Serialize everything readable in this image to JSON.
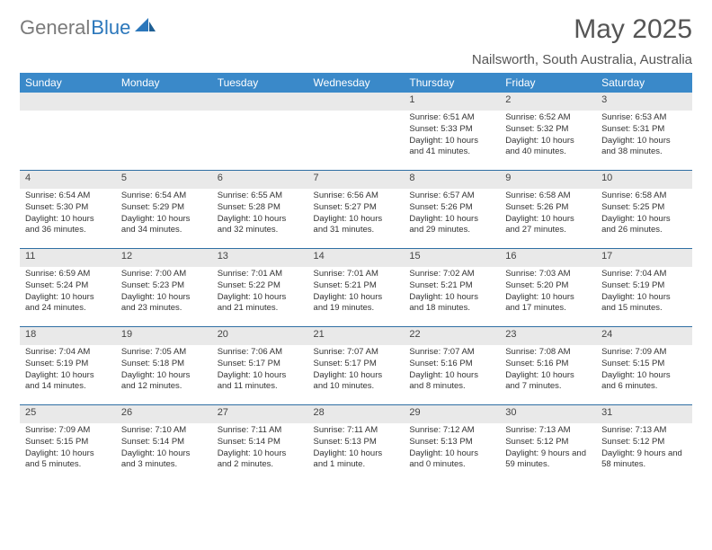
{
  "logo": {
    "part1": "General",
    "part2": "Blue"
  },
  "title": "May 2025",
  "location": "Nailsworth, South Australia, Australia",
  "weekdays": [
    "Sunday",
    "Monday",
    "Tuesday",
    "Wednesday",
    "Thursday",
    "Friday",
    "Saturday"
  ],
  "style": {
    "header_bg": "#3a89c9",
    "header_text": "#ffffff",
    "daynum_bg": "#e9e9e9",
    "sep_color": "#2f6fa3",
    "body_font_size": 9.5,
    "daynum_font_size": 11
  },
  "calendar": {
    "type": "table",
    "cols": 7,
    "rows": 5,
    "first_weekday_index": 4,
    "days": [
      {
        "n": 1,
        "sunrise": "6:51 AM",
        "sunset": "5:33 PM",
        "daylight": "10 hours and 41 minutes."
      },
      {
        "n": 2,
        "sunrise": "6:52 AM",
        "sunset": "5:32 PM",
        "daylight": "10 hours and 40 minutes."
      },
      {
        "n": 3,
        "sunrise": "6:53 AM",
        "sunset": "5:31 PM",
        "daylight": "10 hours and 38 minutes."
      },
      {
        "n": 4,
        "sunrise": "6:54 AM",
        "sunset": "5:30 PM",
        "daylight": "10 hours and 36 minutes."
      },
      {
        "n": 5,
        "sunrise": "6:54 AM",
        "sunset": "5:29 PM",
        "daylight": "10 hours and 34 minutes."
      },
      {
        "n": 6,
        "sunrise": "6:55 AM",
        "sunset": "5:28 PM",
        "daylight": "10 hours and 32 minutes."
      },
      {
        "n": 7,
        "sunrise": "6:56 AM",
        "sunset": "5:27 PM",
        "daylight": "10 hours and 31 minutes."
      },
      {
        "n": 8,
        "sunrise": "6:57 AM",
        "sunset": "5:26 PM",
        "daylight": "10 hours and 29 minutes."
      },
      {
        "n": 9,
        "sunrise": "6:58 AM",
        "sunset": "5:26 PM",
        "daylight": "10 hours and 27 minutes."
      },
      {
        "n": 10,
        "sunrise": "6:58 AM",
        "sunset": "5:25 PM",
        "daylight": "10 hours and 26 minutes."
      },
      {
        "n": 11,
        "sunrise": "6:59 AM",
        "sunset": "5:24 PM",
        "daylight": "10 hours and 24 minutes."
      },
      {
        "n": 12,
        "sunrise": "7:00 AM",
        "sunset": "5:23 PM",
        "daylight": "10 hours and 23 minutes."
      },
      {
        "n": 13,
        "sunrise": "7:01 AM",
        "sunset": "5:22 PM",
        "daylight": "10 hours and 21 minutes."
      },
      {
        "n": 14,
        "sunrise": "7:01 AM",
        "sunset": "5:21 PM",
        "daylight": "10 hours and 19 minutes."
      },
      {
        "n": 15,
        "sunrise": "7:02 AM",
        "sunset": "5:21 PM",
        "daylight": "10 hours and 18 minutes."
      },
      {
        "n": 16,
        "sunrise": "7:03 AM",
        "sunset": "5:20 PM",
        "daylight": "10 hours and 17 minutes."
      },
      {
        "n": 17,
        "sunrise": "7:04 AM",
        "sunset": "5:19 PM",
        "daylight": "10 hours and 15 minutes."
      },
      {
        "n": 18,
        "sunrise": "7:04 AM",
        "sunset": "5:19 PM",
        "daylight": "10 hours and 14 minutes."
      },
      {
        "n": 19,
        "sunrise": "7:05 AM",
        "sunset": "5:18 PM",
        "daylight": "10 hours and 12 minutes."
      },
      {
        "n": 20,
        "sunrise": "7:06 AM",
        "sunset": "5:17 PM",
        "daylight": "10 hours and 11 minutes."
      },
      {
        "n": 21,
        "sunrise": "7:07 AM",
        "sunset": "5:17 PM",
        "daylight": "10 hours and 10 minutes."
      },
      {
        "n": 22,
        "sunrise": "7:07 AM",
        "sunset": "5:16 PM",
        "daylight": "10 hours and 8 minutes."
      },
      {
        "n": 23,
        "sunrise": "7:08 AM",
        "sunset": "5:16 PM",
        "daylight": "10 hours and 7 minutes."
      },
      {
        "n": 24,
        "sunrise": "7:09 AM",
        "sunset": "5:15 PM",
        "daylight": "10 hours and 6 minutes."
      },
      {
        "n": 25,
        "sunrise": "7:09 AM",
        "sunset": "5:15 PM",
        "daylight": "10 hours and 5 minutes."
      },
      {
        "n": 26,
        "sunrise": "7:10 AM",
        "sunset": "5:14 PM",
        "daylight": "10 hours and 3 minutes."
      },
      {
        "n": 27,
        "sunrise": "7:11 AM",
        "sunset": "5:14 PM",
        "daylight": "10 hours and 2 minutes."
      },
      {
        "n": 28,
        "sunrise": "7:11 AM",
        "sunset": "5:13 PM",
        "daylight": "10 hours and 1 minute."
      },
      {
        "n": 29,
        "sunrise": "7:12 AM",
        "sunset": "5:13 PM",
        "daylight": "10 hours and 0 minutes."
      },
      {
        "n": 30,
        "sunrise": "7:13 AM",
        "sunset": "5:12 PM",
        "daylight": "9 hours and 59 minutes."
      },
      {
        "n": 31,
        "sunrise": "7:13 AM",
        "sunset": "5:12 PM",
        "daylight": "9 hours and 58 minutes."
      }
    ]
  },
  "labels": {
    "sunrise": "Sunrise:",
    "sunset": "Sunset:",
    "daylight": "Daylight:"
  }
}
